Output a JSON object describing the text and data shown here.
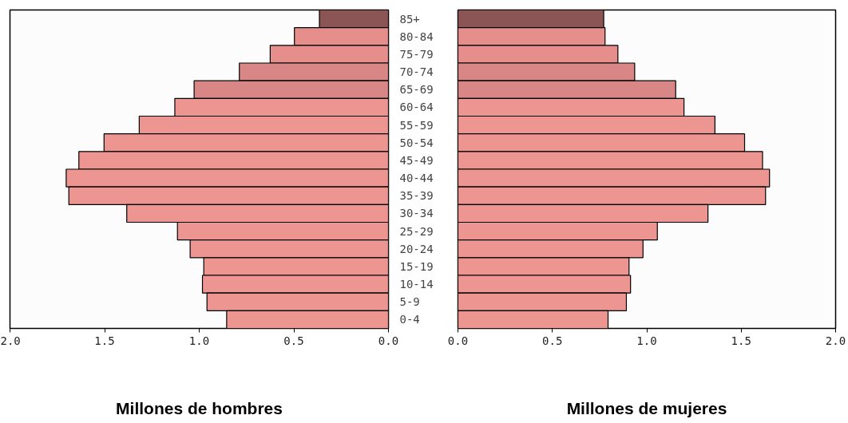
{
  "chart_data": [
    {
      "type": "bar",
      "orientation": "horizontal",
      "xlabel": "Millones de hombres",
      "categories": [
        "85+",
        "80-84",
        "75-79",
        "70-74",
        "65-69",
        "60-64",
        "55-59",
        "50-54",
        "45-49",
        "40-44",
        "35-39",
        "30-34",
        "25-29",
        "20-24",
        "15-19",
        "10-14",
        "5-9",
        "0-4"
      ],
      "values": [
        0.365,
        0.497,
        0.625,
        0.788,
        1.027,
        1.129,
        1.317,
        1.503,
        1.636,
        1.703,
        1.689,
        1.383,
        1.115,
        1.048,
        0.976,
        0.983,
        0.959,
        0.855
      ],
      "colors": [
        "#8b5555",
        "#e68e8c",
        "#e68e8c",
        "#d88686",
        "#d88686",
        "#ec9591",
        "#ec9591",
        "#ec9591",
        "#ec9591",
        "#ec9591",
        "#ec9591",
        "#ec9591",
        "#ec9591",
        "#ec9591",
        "#ec9591",
        "#ec9591",
        "#ec9591",
        "#ec9591"
      ],
      "xlim": [
        2.0,
        0.0
      ],
      "xticks": [
        {
          "value": 2.0,
          "label": "2.0"
        },
        {
          "value": 1.5,
          "label": "1.5"
        },
        {
          "value": 1.0,
          "label": "1.0"
        },
        {
          "value": 0.5,
          "label": "0.5"
        },
        {
          "value": 0.0,
          "label": "0.0"
        }
      ]
    },
    {
      "type": "bar",
      "orientation": "horizontal",
      "xlabel": "Millones de mujeres",
      "tick_labels": "x",
      "categories": [
        null,
        null,
        null,
        null,
        null,
        null,
        null,
        null,
        null,
        null,
        null,
        null,
        null,
        null,
        null,
        null,
        null,
        null
      ],
      "values": [
        0.772,
        0.779,
        0.847,
        0.936,
        1.153,
        1.197,
        1.361,
        1.518,
        1.613,
        1.65,
        1.629,
        1.324,
        1.056,
        0.98,
        0.906,
        0.914,
        0.892,
        0.795
      ],
      "colors": [
        "#8b5555",
        "#e68e8c",
        "#e68e8c",
        "#d88686",
        "#d88686",
        "#ec9591",
        "#ec9591",
        "#ec9591",
        "#ec9591",
        "#ec9591",
        "#ec9591",
        "#ec9591",
        "#ec9591",
        "#ec9591",
        "#ec9591",
        "#ec9591",
        "#ec9591",
        "#ec9591"
      ],
      "xlim": [
        0.0,
        2.0
      ],
      "xticks": [
        {
          "value": 0.0,
          "label": "0.0"
        },
        {
          "value": 0.5,
          "label": "0.5"
        },
        {
          "value": 1.0,
          "label": "1.0"
        },
        {
          "value": 1.5,
          "label": "1.5"
        },
        {
          "value": 2.0,
          "label": "2.0"
        }
      ]
    }
  ]
}
